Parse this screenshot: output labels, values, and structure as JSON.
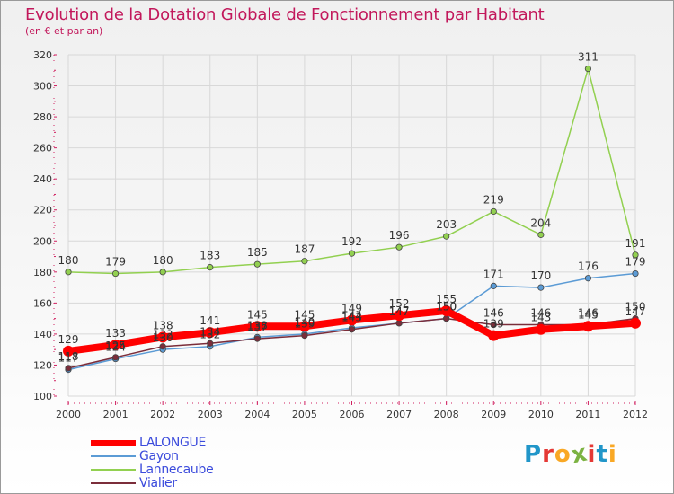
{
  "header": {
    "title": "Evolution de la Dotation Globale de Fonctionnement par Habitant",
    "subtitle": "(en € et par an)"
  },
  "logo": {
    "text": "Proxiti",
    "letters": [
      "P",
      "r",
      "o",
      "x",
      "i",
      "t",
      "i"
    ],
    "colors": [
      "#2196c9",
      "#e53935",
      "#f9a825",
      "#7cb342",
      "#e53935",
      "#2196c9",
      "#f9a825"
    ]
  },
  "chart_data": {
    "type": "line",
    "title": "Evolution de la Dotation Globale de Fonctionnement par Habitant",
    "subtitle": "(en € et par an)",
    "xlabel": "",
    "ylabel": "",
    "x": [
      "2000",
      "2001",
      "2002",
      "2003",
      "2004",
      "2005",
      "2006",
      "2007",
      "2008",
      "2009",
      "2010",
      "2011",
      "2012"
    ],
    "ylim": [
      100,
      320
    ],
    "yticks": [
      100,
      120,
      140,
      160,
      180,
      200,
      220,
      240,
      260,
      280,
      300,
      320
    ],
    "grid": true,
    "legend_position": "bottom-left",
    "series": [
      {
        "name": "LALONGUE",
        "values": [
          129,
          133,
          138,
          141,
          145,
          145,
          149,
          152,
          155,
          139,
          143,
          145,
          147
        ],
        "color": "#ff0000",
        "emphasis": true
      },
      {
        "name": "Gayon",
        "values": [
          117,
          124,
          130,
          132,
          138,
          140,
          144,
          147,
          150,
          171,
          170,
          176,
          179
        ],
        "color": "#5b9bd5",
        "emphasis": false
      },
      {
        "name": "Lannecaube",
        "values": [
          180,
          179,
          180,
          183,
          185,
          187,
          192,
          196,
          203,
          219,
          204,
          311,
          191
        ],
        "color": "#92d050",
        "emphasis": false
      },
      {
        "name": "Vialier",
        "values": [
          118,
          125,
          132,
          134,
          137,
          139,
          143,
          147,
          150,
          146,
          146,
          146,
          150
        ],
        "color": "#7b2d3a",
        "emphasis": false
      }
    ]
  }
}
